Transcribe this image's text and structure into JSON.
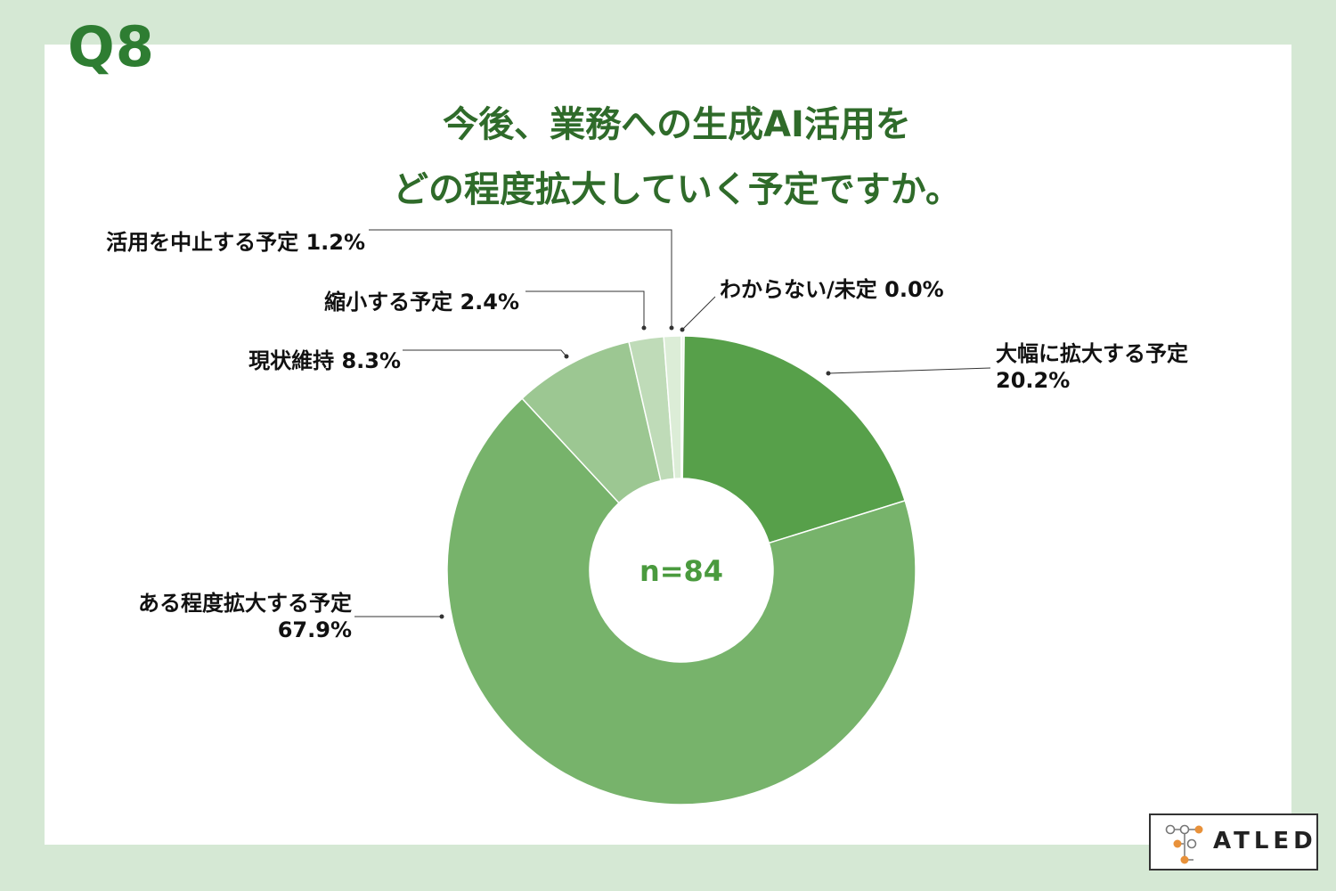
{
  "question_number": "Q8",
  "title_line1": "今後、業務への生成AI活用を",
  "title_line2": "どの程度拡大していく予定ですか。",
  "center_label": "n=84",
  "brand": "ATLED",
  "colors": {
    "frame": "#d5e8d4",
    "accent": "#2e7d32",
    "center_text": "#4a9a3e"
  },
  "chart_data": {
    "type": "pie",
    "variant": "donut",
    "n": 84,
    "slices": [
      {
        "label": "大幅に拡大する予定",
        "value_text": "20.2%",
        "value": 20.2,
        "color": "#57a04a"
      },
      {
        "label": "ある程度拡大する予定",
        "value_text": "67.9%",
        "value": 67.9,
        "color": "#77b36b"
      },
      {
        "label": "現状維持",
        "value_text": "8.3%",
        "value": 8.3,
        "color": "#9cc792"
      },
      {
        "label": "縮小する予定",
        "value_text": "2.4%",
        "value": 2.4,
        "color": "#bfdbb8"
      },
      {
        "label": "活用を中止する予定",
        "value_text": "1.2%",
        "value": 1.2,
        "color": "#dcedd7"
      },
      {
        "label": "わからない/未定",
        "value_text": "0.0%",
        "value": 0.0,
        "color": "#eef6ec"
      }
    ],
    "start_angle": "top",
    "direction": "clockwise"
  }
}
